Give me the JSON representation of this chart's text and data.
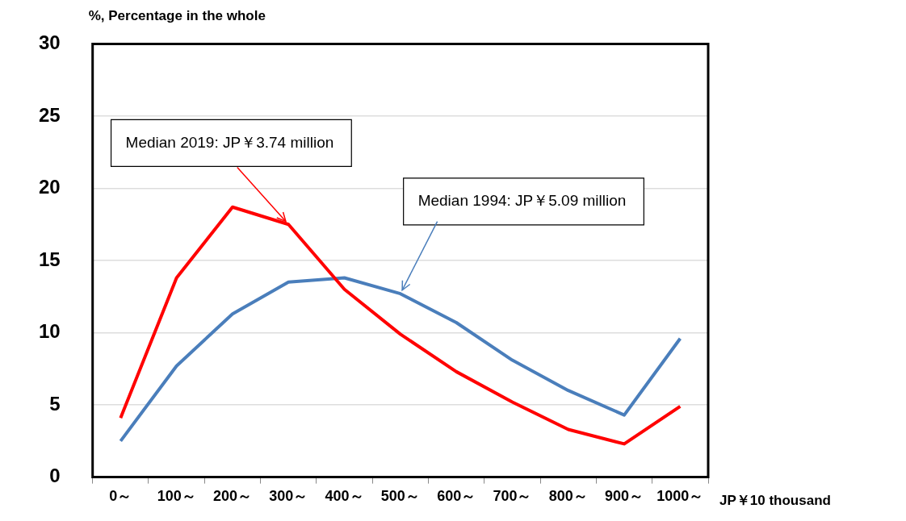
{
  "chart_data": {
    "type": "line",
    "ylabel": "%, Percentage in the whole",
    "xlabel": "JP￥10 thousand",
    "categories": [
      "0～",
      "100～",
      "200～",
      "300～",
      "400～",
      "500～",
      "600～",
      "700～",
      "800～",
      "900～",
      "1000～"
    ],
    "series": [
      {
        "color": "#ff0000",
        "values": [
          4.1,
          13.8,
          18.7,
          17.5,
          13.0,
          9.9,
          7.3,
          5.2,
          3.3,
          2.3,
          4.9
        ]
      },
      {
        "color": "#4a7ebb",
        "values": [
          2.5,
          7.7,
          11.3,
          13.5,
          13.8,
          12.7,
          10.7,
          8.1,
          6.0,
          4.3,
          9.6
        ]
      }
    ],
    "ylim": [
      0,
      30
    ],
    "yticks": [
      0,
      5,
      10,
      15,
      20,
      25,
      30
    ],
    "grid": "y",
    "legend": false,
    "marker": "none",
    "line_style": "solid",
    "annotations": [
      {
        "text": "Median 2019: JP￥3.74 million",
        "x": "300～",
        "y": 17.5
      },
      {
        "text": "Median 1994: JP￥5.09 million",
        "x": "500～",
        "y": 12.7
      }
    ]
  }
}
